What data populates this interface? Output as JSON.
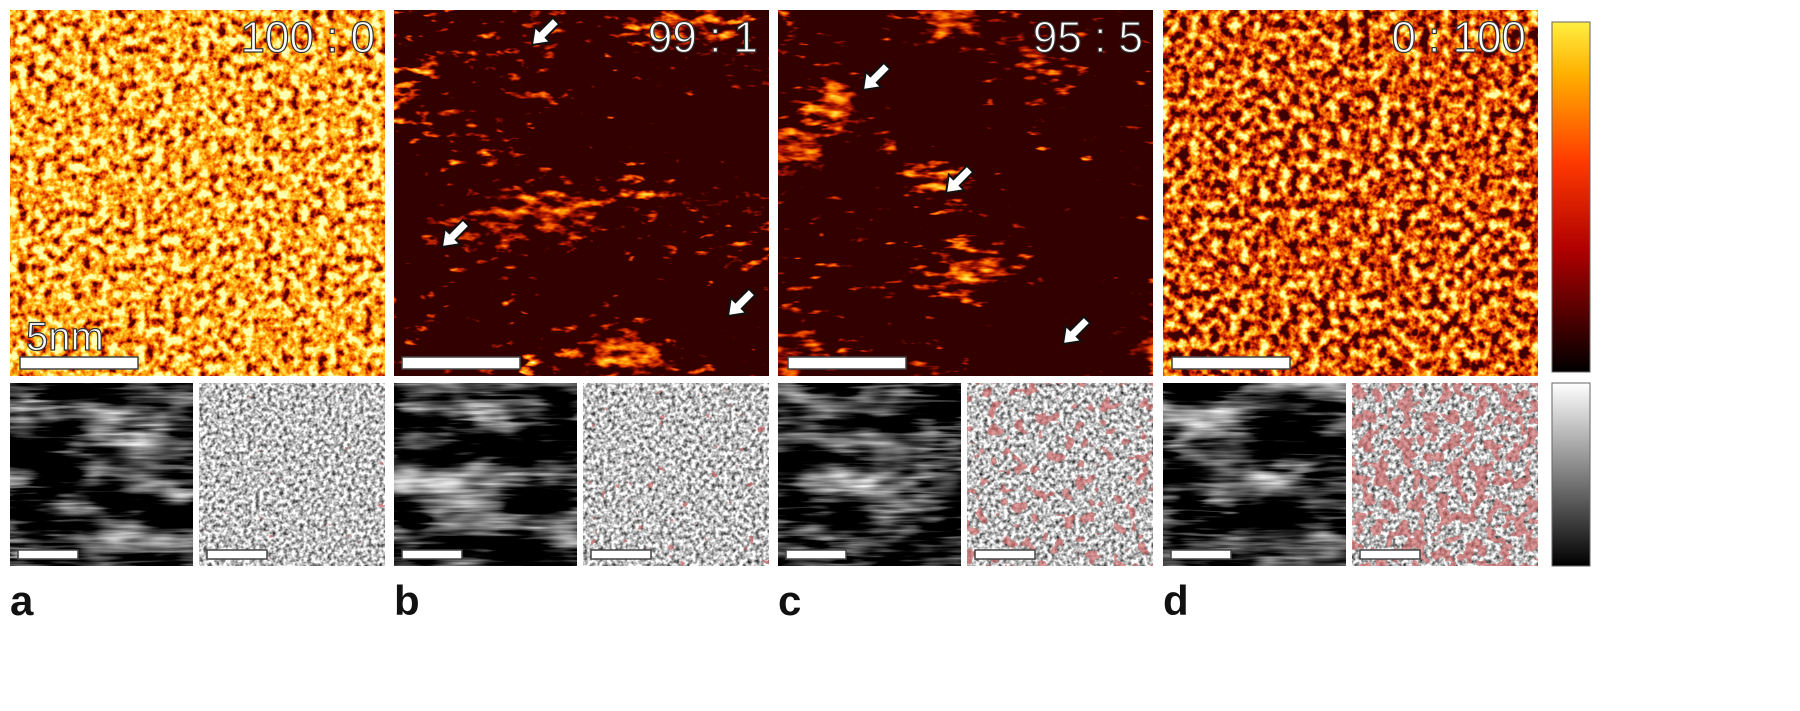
{
  "panels": [
    {
      "label": "a",
      "ratio": "100 : 0",
      "scale_bar_label": "5nm"
    },
    {
      "label": "b",
      "ratio": "99 : 1"
    },
    {
      "label": "c",
      "ratio": "95 : 5"
    },
    {
      "label": "d",
      "ratio": "0 : 100"
    }
  ]
}
